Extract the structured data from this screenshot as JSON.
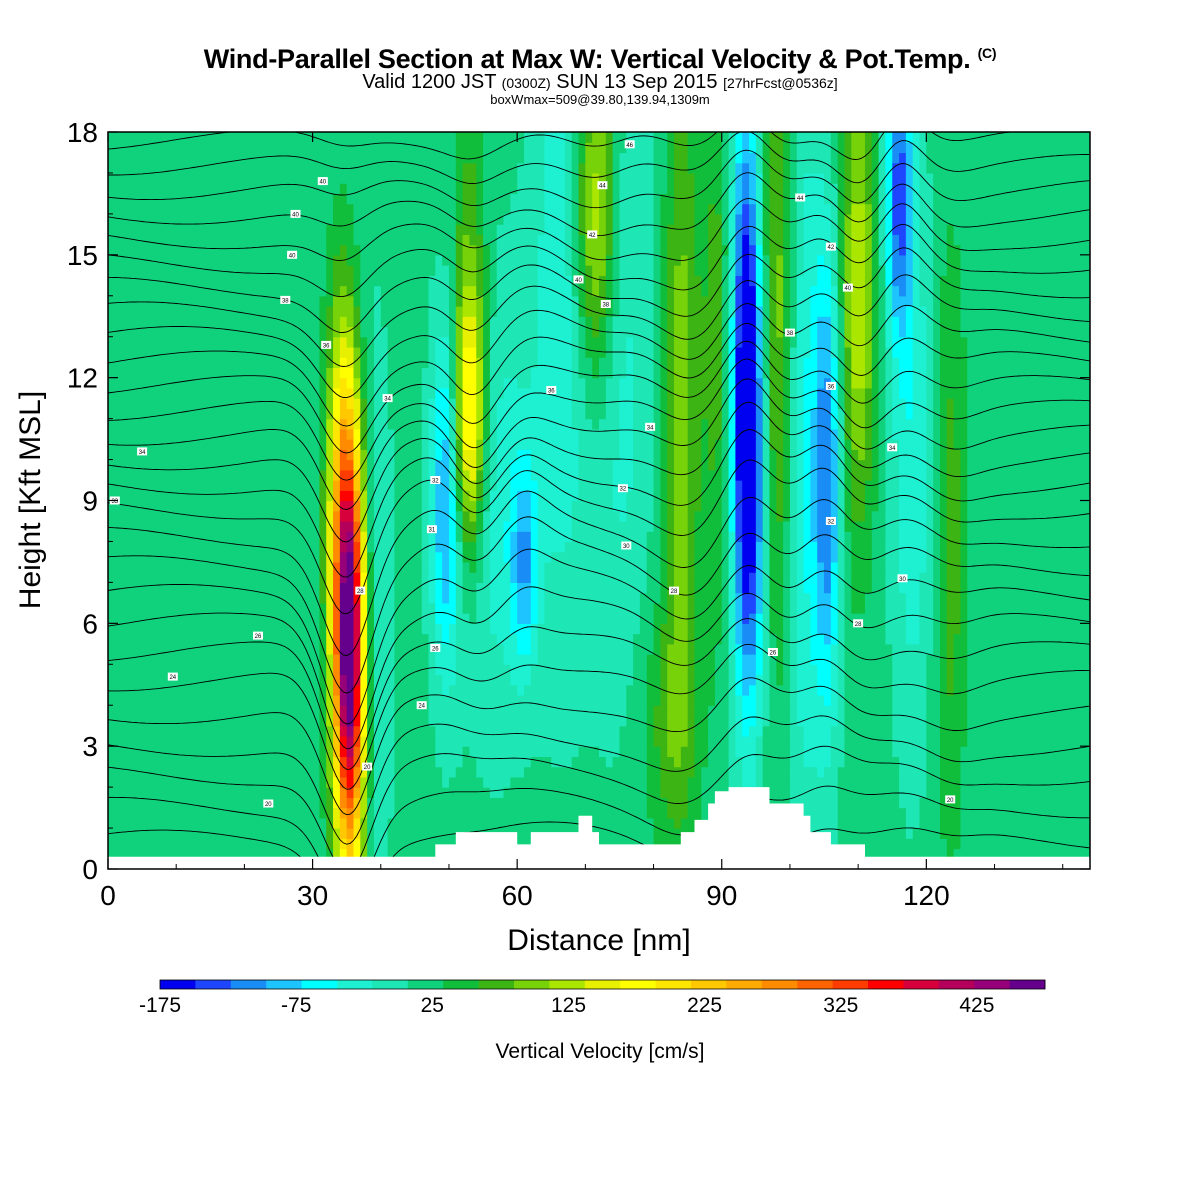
{
  "header": {
    "title": "Wind-Parallel Section at Max W: Vertical Velocity & Pot.Temp.",
    "title_mark": "(C)",
    "valid_prefix": "Valid 1200 JST",
    "valid_utc": "(0300Z)",
    "valid_date": "SUN 13 Sep 2015",
    "forecast": "[27hrFcst@0536z]",
    "box_info": "boxWmax=509@39.80,139.94,1309m"
  },
  "chart_data": {
    "type": "heatmap",
    "title": "Wind-Parallel Section at Max W: Vertical Velocity & Pot.Temp.",
    "xlabel": "Distance [nm]",
    "ylabel": "Height [Kft MSL]",
    "xlim": [
      0,
      144
    ],
    "ylim": [
      0,
      18
    ],
    "xticks": [
      0,
      30,
      60,
      90,
      120
    ],
    "yticks": [
      0,
      3,
      6,
      9,
      12,
      15,
      18
    ],
    "grid": false,
    "colorbar": {
      "label": "Vertical Velocity [cm/s]",
      "min": -175,
      "max": 475,
      "step": 25,
      "tick_values": [
        -175,
        -75,
        25,
        125,
        225,
        325,
        425
      ],
      "tick_labels": [
        "-175",
        "-75",
        "25",
        "125",
        "225",
        "325",
        "425"
      ],
      "colors": [
        "#0000f0",
        "#1e46ff",
        "#1a8cf5",
        "#1ec4ff",
        "#00ffff",
        "#1ef0d2",
        "#1ee6b4",
        "#10d27c",
        "#10be3c",
        "#3cb414",
        "#78d20a",
        "#aae600",
        "#e6f000",
        "#ffff00",
        "#ffe600",
        "#ffc800",
        "#ffaa00",
        "#ff8c00",
        "#ff6400",
        "#ff3c00",
        "#ff0000",
        "#d7003c",
        "#b4005a",
        "#960078",
        "#64008c"
      ]
    },
    "background_value": 10,
    "w_features": [
      {
        "x": 35.5,
        "z": 4.5,
        "width": 1.6,
        "height": 3.6,
        "value": 340
      },
      {
        "x": 35.0,
        "z": 7.5,
        "width": 1.7,
        "height": 3.5,
        "value": 190
      },
      {
        "x": 34.0,
        "z": 11.0,
        "width": 1.6,
        "height": 3.0,
        "value": 60
      },
      {
        "x": 38.5,
        "z": 6.0,
        "width": 2.0,
        "height": 5.0,
        "value": -50
      },
      {
        "x": 49.5,
        "z": 9.0,
        "width": 1.5,
        "height": 3.0,
        "value": -110
      },
      {
        "x": 53.0,
        "z": 11.0,
        "width": 1.6,
        "height": 2.2,
        "value": 160
      },
      {
        "x": 53.0,
        "z": 14.0,
        "width": 1.8,
        "height": 4.0,
        "value": 60
      },
      {
        "x": 56.5,
        "z": 9.0,
        "width": 4.0,
        "height": 4.0,
        "value": -50
      },
      {
        "x": 61.0,
        "z": 7.5,
        "width": 1.4,
        "height": 1.8,
        "value": -90
      },
      {
        "x": 66.5,
        "z": 14.0,
        "width": 3.0,
        "height": 6.0,
        "value": -55
      },
      {
        "x": 71.5,
        "z": 16.0,
        "width": 2.2,
        "height": 3.0,
        "value": 130
      },
      {
        "x": 75.0,
        "z": 12.5,
        "width": 3.5,
        "height": 6.0,
        "value": -45
      },
      {
        "x": 84.0,
        "z": 11.0,
        "width": 1.8,
        "height": 6.0,
        "value": 85
      },
      {
        "x": 89.5,
        "z": 13.0,
        "width": 1.8,
        "height": 5.0,
        "value": 55
      },
      {
        "x": 93.5,
        "z": 12.5,
        "width": 1.6,
        "height": 5.0,
        "value": -170
      },
      {
        "x": 94.5,
        "z": 9.0,
        "width": 1.8,
        "height": 4.0,
        "value": -100
      },
      {
        "x": 98.0,
        "z": 13.0,
        "width": 1.8,
        "height": 6.0,
        "value": 90
      },
      {
        "x": 102.0,
        "z": 10.0,
        "width": 2.2,
        "height": 7.0,
        "value": -60
      },
      {
        "x": 105.5,
        "z": 9.5,
        "width": 1.4,
        "height": 4.0,
        "value": -120
      },
      {
        "x": 110.0,
        "z": 14.0,
        "width": 1.8,
        "height": 4.0,
        "value": 110
      },
      {
        "x": 116.0,
        "z": 16.5,
        "width": 1.4,
        "height": 2.5,
        "value": -140
      },
      {
        "x": 118.0,
        "z": 10.0,
        "width": 2.2,
        "height": 5.0,
        "value": -55
      },
      {
        "x": 123.5,
        "z": 8.0,
        "width": 1.6,
        "height": 5.0,
        "value": 55
      },
      {
        "x": 82.0,
        "z": 3.5,
        "width": 3.0,
        "height": 2.0,
        "value": 45
      }
    ],
    "terrain": [
      [
        0,
        0.3
      ],
      [
        48,
        0.3
      ],
      [
        48,
        0.6
      ],
      [
        51,
        0.6
      ],
      [
        51,
        0.9
      ],
      [
        60,
        0.9
      ],
      [
        60,
        0.6
      ],
      [
        62,
        0.6
      ],
      [
        62,
        0.9
      ],
      [
        69,
        0.9
      ],
      [
        69,
        1.3
      ],
      [
        71,
        1.3
      ],
      [
        71,
        0.9
      ],
      [
        72,
        0.9
      ],
      [
        72,
        0.6
      ],
      [
        84,
        0.6
      ],
      [
        84,
        0.9
      ],
      [
        86,
        0.9
      ],
      [
        86,
        1.2
      ],
      [
        88,
        1.2
      ],
      [
        88,
        1.6
      ],
      [
        89,
        1.6
      ],
      [
        89,
        1.9
      ],
      [
        91,
        1.9
      ],
      [
        91,
        2.0
      ],
      [
        97,
        2.0
      ],
      [
        97,
        1.6
      ],
      [
        102,
        1.6
      ],
      [
        102,
        1.3
      ],
      [
        103,
        1.3
      ],
      [
        103,
        0.9
      ],
      [
        106,
        0.9
      ],
      [
        106,
        0.6
      ],
      [
        111,
        0.6
      ],
      [
        111,
        0.3
      ],
      [
        144,
        0.3
      ]
    ],
    "theta_contours": {
      "levels_count": 27,
      "base_heights_kft": [
        0.7,
        1.5,
        2.3,
        3.0,
        3.8,
        4.6,
        5.3,
        6.0,
        6.7,
        7.4,
        8.1,
        8.8,
        9.4,
        10.0,
        10.6,
        11.2,
        11.8,
        12.4,
        13.0,
        13.6,
        14.2,
        14.8,
        15.4,
        16.0,
        16.6,
        17.2,
        17.8
      ]
    },
    "contour_labels": [
      {
        "x": 31.5,
        "z": 16.8,
        "text": "40"
      },
      {
        "x": 27.5,
        "z": 16.0,
        "text": "40"
      },
      {
        "x": 27.0,
        "z": 15.0,
        "text": "40"
      },
      {
        "x": 26.0,
        "z": 13.9,
        "text": "38"
      },
      {
        "x": 32.0,
        "z": 12.8,
        "text": "36"
      },
      {
        "x": 41.0,
        "z": 11.5,
        "text": "34"
      },
      {
        "x": 5.0,
        "z": 10.2,
        "text": "34"
      },
      {
        "x": 1.0,
        "z": 9.0,
        "text": "33"
      },
      {
        "x": 48.0,
        "z": 9.5,
        "text": "32"
      },
      {
        "x": 47.5,
        "z": 8.3,
        "text": "31"
      },
      {
        "x": 22.0,
        "z": 5.7,
        "text": "26"
      },
      {
        "x": 9.5,
        "z": 4.7,
        "text": "24"
      },
      {
        "x": 37.0,
        "z": 6.8,
        "text": "28"
      },
      {
        "x": 48.0,
        "z": 5.4,
        "text": "26"
      },
      {
        "x": 46.0,
        "z": 4.0,
        "text": "24"
      },
      {
        "x": 38.0,
        "z": 2.5,
        "text": "20"
      },
      {
        "x": 23.5,
        "z": 1.6,
        "text": "20"
      },
      {
        "x": 76.5,
        "z": 17.7,
        "text": "46"
      },
      {
        "x": 72.5,
        "z": 16.7,
        "text": "44"
      },
      {
        "x": 71.0,
        "z": 15.5,
        "text": "42"
      },
      {
        "x": 69.0,
        "z": 14.4,
        "text": "40"
      },
      {
        "x": 73.0,
        "z": 13.8,
        "text": "38"
      },
      {
        "x": 65.0,
        "z": 11.7,
        "text": "36"
      },
      {
        "x": 79.5,
        "z": 10.8,
        "text": "34"
      },
      {
        "x": 75.5,
        "z": 9.3,
        "text": "32"
      },
      {
        "x": 76.0,
        "z": 7.9,
        "text": "30"
      },
      {
        "x": 83.0,
        "z": 6.8,
        "text": "28"
      },
      {
        "x": 97.5,
        "z": 5.3,
        "text": "26"
      },
      {
        "x": 101.5,
        "z": 16.4,
        "text": "44"
      },
      {
        "x": 106.0,
        "z": 15.2,
        "text": "42"
      },
      {
        "x": 108.5,
        "z": 14.2,
        "text": "40"
      },
      {
        "x": 100.0,
        "z": 13.1,
        "text": "38"
      },
      {
        "x": 106.0,
        "z": 11.8,
        "text": "36"
      },
      {
        "x": 115.0,
        "z": 10.3,
        "text": "34"
      },
      {
        "x": 106.0,
        "z": 8.5,
        "text": "32"
      },
      {
        "x": 116.5,
        "z": 7.1,
        "text": "30"
      },
      {
        "x": 110.0,
        "z": 6.0,
        "text": "28"
      },
      {
        "x": 123.5,
        "z": 1.7,
        "text": "20"
      }
    ]
  }
}
